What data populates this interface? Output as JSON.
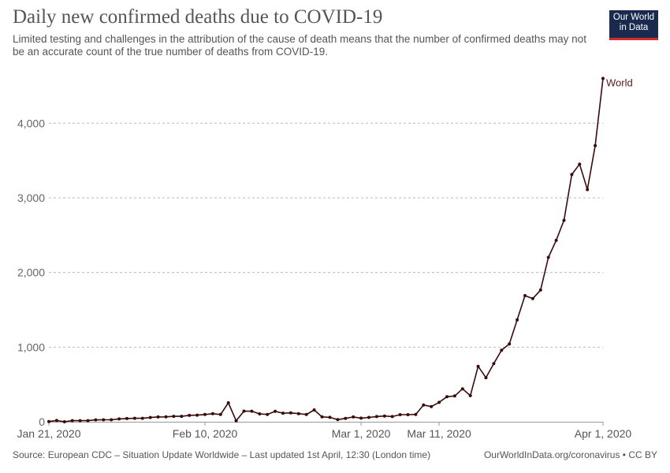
{
  "header": {
    "title": "Daily new confirmed deaths due to COVID-19",
    "subtitle": "Limited testing and challenges in the attribution of the cause of death means that the number of confirmed deaths may not be an accurate count of the true number of deaths from COVID-19.",
    "logo_line1": "Our World",
    "logo_line2": "in Data"
  },
  "footer": {
    "source": "Source: European CDC – Situation Update Worldwide – Last updated 1st April, 12:30 (London time)",
    "credit": "OurWorldInData.org/coronavirus • CC BY"
  },
  "colors": {
    "line": "#3a0b0b",
    "grid": "#bbbbbb",
    "axis": "#999999",
    "logo_bg": "#1a2a4f",
    "logo_accent": "#d22d2d"
  },
  "chart_data": {
    "type": "line",
    "x_start_date": "2020-01-21",
    "x_end_date": "2020-04-01",
    "xtick_labels": [
      "Jan 21, 2020",
      "Feb 10, 2020",
      "Mar 1, 2020",
      "Mar 11, 2020",
      "Apr 1, 2020"
    ],
    "xtick_dates": [
      "2020-01-21",
      "2020-02-10",
      "2020-03-01",
      "2020-03-11",
      "2020-04-01"
    ],
    "ylim": [
      0,
      4700
    ],
    "yticks": [
      0,
      1000,
      2000,
      3000,
      4000
    ],
    "ytick_labels": [
      "0",
      "1,000",
      "2,000",
      "3,000",
      "4,000"
    ],
    "grid": "horizontal dashed",
    "series": [
      {
        "name": "World",
        "values": [
          3,
          17,
          0,
          15,
          15,
          15,
          25,
          26,
          26,
          38,
          43,
          46,
          46,
          57,
          64,
          66,
          73,
          73,
          86,
          89,
          97,
          108,
          97,
          254,
          13,
          143,
          142,
          106,
          98,
          139,
          115,
          118,
          109,
          97,
          158,
          66,
          59,
          29,
          45,
          64,
          49,
          58,
          70,
          77,
          70,
          95,
          95,
          98,
          224,
          204,
          260,
          336,
          345,
          442,
          350,
          743,
          590,
          779,
          958,
          1042,
          1365,
          1690,
          1650,
          1765,
          2202,
          2430,
          2699,
          3312,
          3452,
          3110,
          3700,
          4600
        ]
      }
    ]
  }
}
